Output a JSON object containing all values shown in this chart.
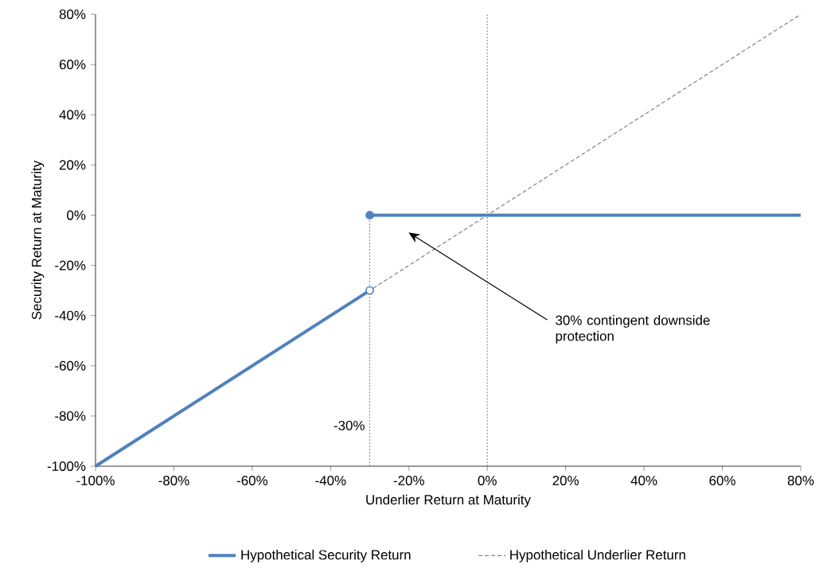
{
  "chart_data": {
    "type": "line",
    "xlabel": "Underlier Return at Maturity",
    "ylabel": "Security Return at Maturity",
    "xlim": [
      -100,
      80
    ],
    "ylim": [
      -100,
      80
    ],
    "xticks": [
      {
        "value": -100,
        "label": "-100%"
      },
      {
        "value": -80,
        "label": "-80%"
      },
      {
        "value": -60,
        "label": "-60%"
      },
      {
        "value": -40,
        "label": "-40%"
      },
      {
        "value": -20,
        "label": "-20%"
      },
      {
        "value": 0,
        "label": "0%"
      },
      {
        "value": 20,
        "label": "20%"
      },
      {
        "value": 40,
        "label": "40%"
      },
      {
        "value": 60,
        "label": "60%"
      },
      {
        "value": 80,
        "label": "80%"
      }
    ],
    "yticks": [
      {
        "value": -100,
        "label": "-100%"
      },
      {
        "value": -80,
        "label": "-80%"
      },
      {
        "value": -60,
        "label": "-60%"
      },
      {
        "value": -40,
        "label": "-40%"
      },
      {
        "value": -20,
        "label": "-20%"
      },
      {
        "value": 0,
        "label": "0%"
      },
      {
        "value": 20,
        "label": "20%"
      },
      {
        "value": 40,
        "label": "40%"
      },
      {
        "value": 60,
        "label": "60%"
      },
      {
        "value": 80,
        "label": "80%"
      }
    ],
    "series": [
      {
        "name": "Hypothetical Underlier Return",
        "color": "#808080",
        "line_style": "dashed",
        "x": [
          -100,
          80
        ],
        "values": [
          -100,
          80
        ]
      },
      {
        "name": "Hypothetical Security Return",
        "color": "#4f81bd",
        "line_style": "solid",
        "x": [
          -100,
          -30,
          null,
          -30,
          80
        ],
        "values": [
          -100,
          -30,
          null,
          0,
          0
        ]
      },
      {
        "type": "scatter",
        "color": "#4f81bd",
        "marker": "circle",
        "x": [
          -30,
          -30
        ],
        "values": [
          -30,
          0
        ],
        "colors": [
          "#ffffff",
          "#4f81bd"
        ]
      }
    ],
    "ref_lines": [
      {
        "axis": "x",
        "value": -30,
        "label": "-30%",
        "color": "#808080",
        "line_style": "dotted"
      },
      {
        "axis": "x",
        "value": 0,
        "color": "#808080",
        "line_style": "dotted"
      }
    ],
    "annotations": [
      "30% contingent downside protection"
    ],
    "legend": "bottom",
    "grid": false
  }
}
